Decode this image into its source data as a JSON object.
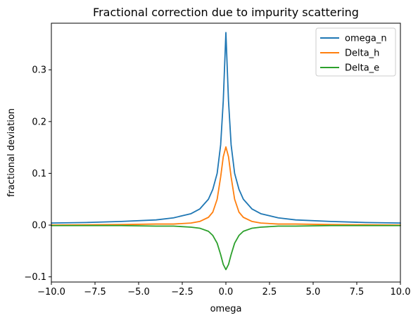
{
  "chart_data": {
    "type": "line",
    "title": "Fractional correction due to impurity scattering",
    "xlabel": "omega",
    "ylabel": "fractional deviation",
    "xlim": [
      -10,
      10
    ],
    "ylim": [
      -0.11,
      0.39
    ],
    "xticks": [
      -10,
      -7.5,
      -5,
      -2.5,
      0,
      2.5,
      5,
      7.5,
      10
    ],
    "xtick_labels": [
      "−10.0",
      "−7.5",
      "−5.0",
      "−2.5",
      "0.0",
      "2.5",
      "5.0",
      "7.5",
      "10.0"
    ],
    "yticks": [
      -0.1,
      0,
      0.1,
      0.2,
      0.3
    ],
    "ytick_labels": [
      "−0.1",
      "0.0",
      "0.1",
      "0.2",
      "0.3"
    ],
    "grid": false,
    "legend_position": "top-right",
    "series": [
      {
        "name": "omega_n",
        "color": "#1f77b4",
        "x": [
          -10,
          -8,
          -6,
          -4,
          -3,
          -2,
          -1.5,
          -1,
          -0.75,
          -0.5,
          -0.3,
          -0.15,
          0,
          0.15,
          0.3,
          0.5,
          0.75,
          1,
          1.5,
          2,
          3,
          4,
          6,
          8,
          10
        ],
        "y": [
          0.004,
          0.005,
          0.007,
          0.01,
          0.014,
          0.022,
          0.031,
          0.05,
          0.069,
          0.1,
          0.155,
          0.24,
          0.372,
          0.24,
          0.155,
          0.1,
          0.069,
          0.05,
          0.031,
          0.022,
          0.014,
          0.01,
          0.007,
          0.005,
          0.004
        ]
      },
      {
        "name": "Delta_h",
        "color": "#ff7f0e",
        "x": [
          -10,
          -6,
          -4,
          -3,
          -2,
          -1.5,
          -1,
          -0.75,
          -0.5,
          -0.3,
          -0.15,
          0,
          0.15,
          0.3,
          0.5,
          0.75,
          1,
          1.5,
          2,
          3,
          4,
          6,
          10
        ],
        "y": [
          0.0,
          0.001,
          0.002,
          0.002,
          0.004,
          0.007,
          0.015,
          0.025,
          0.05,
          0.093,
          0.132,
          0.151,
          0.132,
          0.093,
          0.05,
          0.025,
          0.015,
          0.007,
          0.004,
          0.002,
          0.002,
          0.001,
          0.0
        ]
      },
      {
        "name": "Delta_e",
        "color": "#2ca02c",
        "x": [
          -10,
          -6,
          -4,
          -3,
          -2,
          -1.5,
          -1,
          -0.75,
          -0.5,
          -0.3,
          -0.15,
          0,
          0.15,
          0.3,
          0.5,
          0.75,
          1,
          1.5,
          2,
          3,
          4,
          6,
          10
        ],
        "y": [
          -0.001,
          -0.001,
          -0.002,
          -0.002,
          -0.004,
          -0.006,
          -0.012,
          -0.02,
          -0.035,
          -0.057,
          -0.076,
          -0.086,
          -0.076,
          -0.057,
          -0.035,
          -0.02,
          -0.012,
          -0.006,
          -0.004,
          -0.002,
          -0.002,
          -0.001,
          -0.001
        ]
      }
    ]
  }
}
